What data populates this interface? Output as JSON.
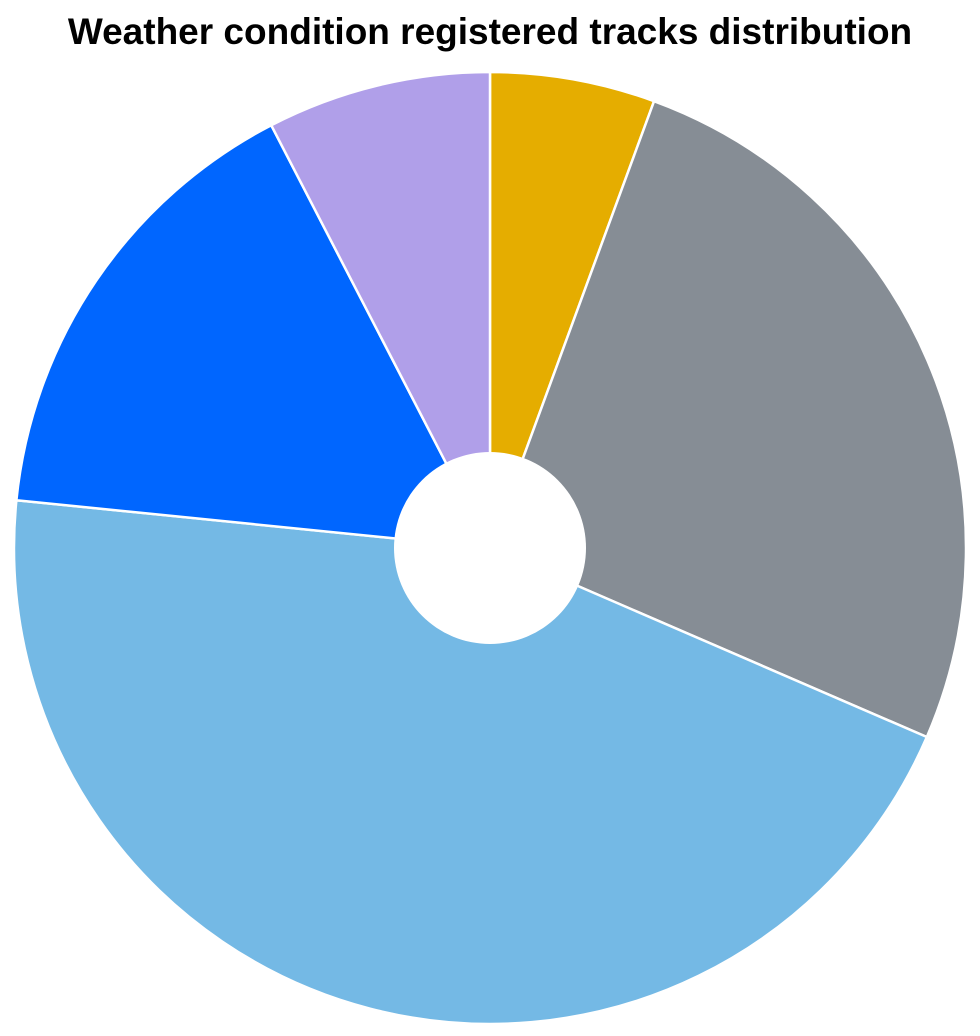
{
  "chart_data": {
    "type": "pie",
    "title": "Weather condition registered tracks distribution",
    "donut": true,
    "legend": "none",
    "slices": [
      {
        "value": 5.6,
        "color": "#e5ad00"
      },
      {
        "value": 25.9,
        "color": "#868d95"
      },
      {
        "value": 45.1,
        "color": "#74b9e5"
      },
      {
        "value": 15.8,
        "color": "#0066ff"
      },
      {
        "value": 7.6,
        "color": "#b09fe9"
      }
    ]
  }
}
